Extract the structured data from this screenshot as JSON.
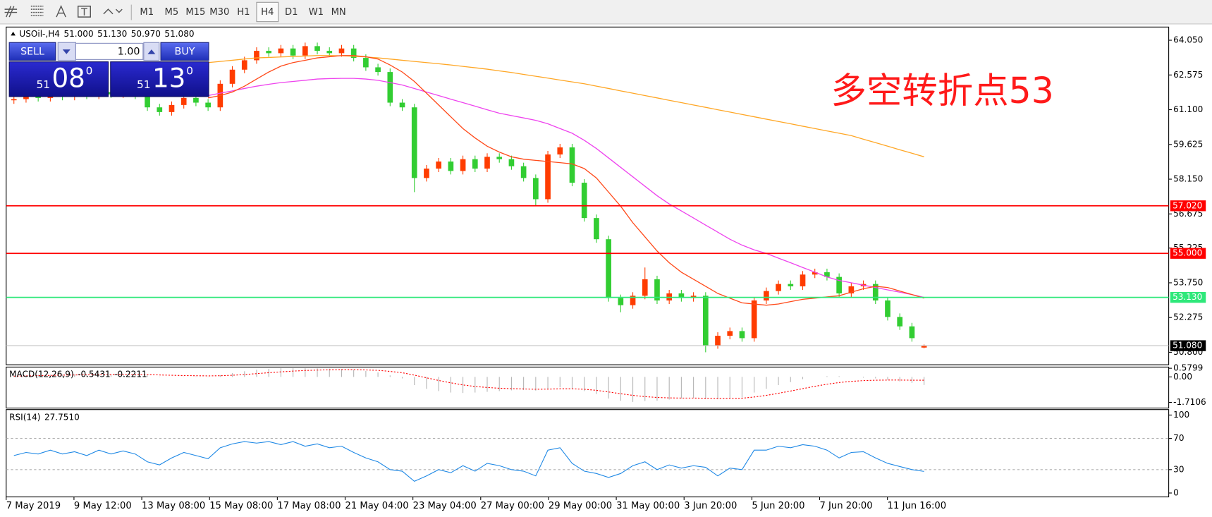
{
  "ui": {
    "timeframes": [
      "M1",
      "M5",
      "M15",
      "M30",
      "H1",
      "H4",
      "D1",
      "W1",
      "MN"
    ],
    "active_timeframe": "H4",
    "trade_panel": {
      "sell_label": "SELL",
      "buy_label": "BUY",
      "lots": "1.00",
      "bid": {
        "big": "51",
        "figure": "08",
        "pip": "0"
      },
      "ask": {
        "big": "51",
        "figure": "13",
        "pip": "0"
      }
    }
  },
  "chart_data": [
    {
      "type": "candlestick",
      "title": "USOil-,H4",
      "last_bar_labels": [
        "51.000",
        "51.130",
        "50.970",
        "51.080"
      ],
      "annotation": "多空转折点53",
      "up_color": "#ff3c00",
      "down_color": "#32cd32",
      "open": [
        61.5,
        61.55,
        61.7,
        61.6,
        61.75,
        61.65,
        61.8,
        61.7,
        61.85,
        61.75,
        61.9,
        61.7,
        61.2,
        61.0,
        61.3,
        61.6,
        61.4,
        61.2,
        62.2,
        62.8,
        63.2,
        63.6,
        63.5,
        63.7,
        63.4,
        63.8,
        63.6,
        63.5,
        63.7,
        63.3,
        62.9,
        62.7,
        61.4,
        61.2,
        58.2,
        58.6,
        58.9,
        58.5,
        59.0,
        58.6,
        59.1,
        59.0,
        58.7,
        58.2,
        57.3,
        59.2,
        59.5,
        58.0,
        56.5,
        55.6,
        53.1,
        52.8,
        53.2,
        53.9,
        53.0,
        53.3,
        53.1,
        53.2,
        51.1,
        51.5,
        51.7,
        51.4,
        53.0,
        53.4,
        53.7,
        53.6,
        54.1,
        54.2,
        54.0,
        53.3,
        53.6,
        53.7,
        53.0,
        52.3,
        51.9,
        51.0
      ],
      "high": [
        61.7,
        61.85,
        61.85,
        61.9,
        61.9,
        61.95,
        61.95,
        62.0,
        62.0,
        62.05,
        62.05,
        61.85,
        61.35,
        61.45,
        61.75,
        61.75,
        61.55,
        62.35,
        62.95,
        63.35,
        63.75,
        63.75,
        63.85,
        63.85,
        63.95,
        63.95,
        63.75,
        63.85,
        63.85,
        63.45,
        63.05,
        62.85,
        61.55,
        61.35,
        58.75,
        59.05,
        59.05,
        59.15,
        59.15,
        59.25,
        59.25,
        59.15,
        58.85,
        58.35,
        59.35,
        59.65,
        59.65,
        58.15,
        56.65,
        55.75,
        53.25,
        53.35,
        54.4,
        54.05,
        53.45,
        53.45,
        53.35,
        53.35,
        51.65,
        51.85,
        51.85,
        53.15,
        53.55,
        53.85,
        53.85,
        54.25,
        54.35,
        54.35,
        54.15,
        53.75,
        53.85,
        53.85,
        53.15,
        52.45,
        52.05,
        51.13
      ],
      "low": [
        61.35,
        61.4,
        61.45,
        61.45,
        61.5,
        61.5,
        61.55,
        61.55,
        61.6,
        61.6,
        61.55,
        61.05,
        60.85,
        60.85,
        61.15,
        61.25,
        61.05,
        61.05,
        62.05,
        62.65,
        63.05,
        63.35,
        63.35,
        63.25,
        63.25,
        63.45,
        63.35,
        63.35,
        63.15,
        62.75,
        62.55,
        61.25,
        61.05,
        57.6,
        58.05,
        58.45,
        58.35,
        58.35,
        58.45,
        58.45,
        58.85,
        58.55,
        58.05,
        57.0,
        57.15,
        59.05,
        57.85,
        56.35,
        55.45,
        52.95,
        52.5,
        52.65,
        53.05,
        52.85,
        52.85,
        52.95,
        52.95,
        50.8,
        50.95,
        51.35,
        51.25,
        51.25,
        52.85,
        53.25,
        53.45,
        53.45,
        53.95,
        53.85,
        53.15,
        53.15,
        53.45,
        52.85,
        52.15,
        51.75,
        51.25,
        50.97
      ],
      "close": [
        61.55,
        61.7,
        61.6,
        61.75,
        61.65,
        61.8,
        61.7,
        61.85,
        61.75,
        61.9,
        61.7,
        61.2,
        61.0,
        61.3,
        61.6,
        61.4,
        61.2,
        62.2,
        62.8,
        63.2,
        63.6,
        63.5,
        63.7,
        63.4,
        63.8,
        63.6,
        63.5,
        63.7,
        63.3,
        62.9,
        62.7,
        61.4,
        61.2,
        58.2,
        58.6,
        58.9,
        58.5,
        59.0,
        58.6,
        59.1,
        59.0,
        58.7,
        58.2,
        57.3,
        59.2,
        59.5,
        58.0,
        56.5,
        55.6,
        53.1,
        52.8,
        53.2,
        53.9,
        53.0,
        53.3,
        53.1,
        53.2,
        51.1,
        51.5,
        51.7,
        51.4,
        53.0,
        53.4,
        53.7,
        53.6,
        54.1,
        54.2,
        54.0,
        53.3,
        53.6,
        53.7,
        53.0,
        52.3,
        51.9,
        51.4,
        51.08
      ],
      "series": [
        {
          "color": "#ffa726",
          "values": [
            null,
            null,
            null,
            null,
            null,
            null,
            null,
            null,
            null,
            null,
            null,
            null,
            null,
            null,
            null,
            null,
            63.1,
            63.15,
            63.2,
            63.25,
            63.3,
            63.32,
            63.34,
            63.36,
            63.38,
            63.4,
            63.4,
            63.39,
            63.37,
            63.34,
            63.3,
            63.25,
            63.2,
            63.15,
            63.1,
            63.05,
            63.0,
            62.94,
            62.88,
            62.82,
            62.75,
            62.68,
            62.6,
            62.52,
            62.44,
            62.36,
            62.28,
            62.2,
            62.1,
            62.0,
            61.9,
            61.8,
            61.7,
            61.6,
            61.5,
            61.4,
            61.3,
            61.2,
            61.1,
            61.0,
            60.9,
            60.8,
            60.7,
            60.6,
            60.5,
            60.4,
            60.3,
            60.2,
            60.1,
            60.0,
            59.85,
            59.7,
            59.55,
            59.4,
            59.25,
            59.1
          ]
        },
        {
          "color": "#ee44ee",
          "values": [
            null,
            null,
            null,
            null,
            null,
            null,
            null,
            null,
            null,
            null,
            null,
            null,
            null,
            null,
            null,
            null,
            61.7,
            61.8,
            61.9,
            62.0,
            62.1,
            62.18,
            62.25,
            62.3,
            62.35,
            62.4,
            62.42,
            62.43,
            62.43,
            62.4,
            62.35,
            62.25,
            62.15,
            62.0,
            61.85,
            61.7,
            61.55,
            61.4,
            61.25,
            61.1,
            60.95,
            60.85,
            60.75,
            60.65,
            60.5,
            60.3,
            60.1,
            59.8,
            59.45,
            59.05,
            58.65,
            58.25,
            57.85,
            57.45,
            57.1,
            56.8,
            56.5,
            56.2,
            55.9,
            55.6,
            55.35,
            55.15,
            55.0,
            54.8,
            54.6,
            54.4,
            54.2,
            54.0,
            53.85,
            53.75,
            53.65,
            53.55,
            53.45,
            53.35,
            53.25,
            53.13
          ]
        },
        {
          "color": "#ff4a1a",
          "values": [
            null,
            null,
            null,
            null,
            null,
            null,
            null,
            null,
            null,
            null,
            null,
            null,
            null,
            null,
            null,
            null,
            61.6,
            61.7,
            61.85,
            62.1,
            62.4,
            62.7,
            62.95,
            63.1,
            63.2,
            63.3,
            63.35,
            63.4,
            63.4,
            63.35,
            63.25,
            63.0,
            62.7,
            62.3,
            61.8,
            61.3,
            60.8,
            60.3,
            59.9,
            59.55,
            59.3,
            59.1,
            59.0,
            58.95,
            58.9,
            58.85,
            58.8,
            58.6,
            58.2,
            57.6,
            57.0,
            56.3,
            55.7,
            55.1,
            54.6,
            54.2,
            53.9,
            53.6,
            53.3,
            53.1,
            52.9,
            52.85,
            52.8,
            52.85,
            52.95,
            53.05,
            53.1,
            53.15,
            53.2,
            53.35,
            53.5,
            53.6,
            53.55,
            53.4,
            53.25,
            53.1
          ]
        }
      ],
      "levels": [
        {
          "value": 57.02,
          "label": "57.020",
          "color": "#ff0000"
        },
        {
          "value": 55,
          "label": "55.000",
          "color": "#ff0000"
        },
        {
          "value": 53.13,
          "label": "53.130",
          "color": "#2ee87a"
        },
        {
          "value": 51.08,
          "label": "51.080",
          "color": "#c0c0c0",
          "tag_color": "#000000"
        }
      ],
      "ylim": [
        50.27,
        64.61
      ],
      "yticks": [
        {
          "value": 64.05,
          "label": "64.050"
        },
        62.575,
        {
          "value": 61.1,
          "label": "61.100"
        },
        59.625,
        {
          "value": 58.15,
          "label": "58.150"
        },
        56.675,
        55.225,
        {
          "value": 53.75,
          "label": "53.750"
        },
        52.275,
        {
          "value": 50.8,
          "label": "50.800"
        }
      ],
      "time_labels": [
        "7 May 2019",
        "9 May 12:00",
        "13 May 08:00",
        "15 May 08:00",
        "17 May 08:00",
        "21 May 04:00",
        "23 May 04:00",
        "27 May 00:00",
        "29 May 00:00",
        "31 May 00:00",
        "3 Jun 20:00",
        "5 Jun 20:00",
        "7 Jun 20:00",
        "11 Jun 16:00"
      ]
    },
    {
      "type": "macd",
      "title": "MACD(12,26,9)",
      "series": [
        {
          "color": "#b4b4b4",
          "values": [
            0.1,
            0.12,
            0.14,
            0.15,
            0.16,
            0.17,
            0.17,
            0.18,
            0.18,
            0.19,
            0.17,
            0.1,
            0.02,
            0.0,
            0.02,
            0.03,
            0.02,
            0.12,
            0.25,
            0.38,
            0.48,
            0.54,
            0.58,
            0.58,
            0.58,
            0.57,
            0.55,
            0.53,
            0.48,
            0.4,
            0.3,
            0.1,
            -0.1,
            -0.55,
            -0.8,
            -0.95,
            -1.05,
            -1.08,
            -1.05,
            -1.0,
            -0.95,
            -0.9,
            -0.88,
            -0.92,
            -0.8,
            -0.7,
            -0.78,
            -0.95,
            -1.15,
            -1.45,
            -1.6,
            -1.68,
            -1.62,
            -1.6,
            -1.52,
            -1.45,
            -1.4,
            -1.48,
            -1.5,
            -1.45,
            -1.38,
            -1.05,
            -0.8,
            -0.55,
            -0.35,
            -0.15,
            0.0,
            0.05,
            0.05,
            0.0,
            -0.05,
            -0.1,
            -0.2,
            -0.3,
            -0.4,
            -0.5431
          ]
        },
        {
          "color": "#ff0000",
          "values": [
            0.05,
            0.07,
            0.09,
            0.1,
            0.12,
            0.13,
            0.14,
            0.15,
            0.16,
            0.17,
            0.17,
            0.16,
            0.13,
            0.11,
            0.09,
            0.08,
            0.07,
            0.08,
            0.11,
            0.16,
            0.22,
            0.28,
            0.34,
            0.39,
            0.43,
            0.46,
            0.48,
            0.49,
            0.49,
            0.47,
            0.44,
            0.37,
            0.28,
            0.12,
            -0.06,
            -0.24,
            -0.4,
            -0.54,
            -0.64,
            -0.71,
            -0.76,
            -0.79,
            -0.81,
            -0.83,
            -0.82,
            -0.8,
            -0.8,
            -0.83,
            -0.9,
            -1.01,
            -1.13,
            -1.24,
            -1.32,
            -1.38,
            -1.41,
            -1.42,
            -1.42,
            -1.43,
            -1.44,
            -1.44,
            -1.43,
            -1.35,
            -1.24,
            -1.1,
            -0.95,
            -0.79,
            -0.63,
            -0.49,
            -0.38,
            -0.3,
            -0.25,
            -0.22,
            -0.21,
            -0.21,
            -0.22,
            -0.2211
          ]
        }
      ],
      "ylim": [
        -2.09,
        0.66
      ],
      "yticks": [
        0.5799,
        {
          "value": 0,
          "label": "0.00"
        },
        -1.7106
      ]
    },
    {
      "type": "rsi",
      "title": "RSI(14)",
      "last_value_label": "27.7510",
      "series": [
        {
          "color": "#1e88e5",
          "values": [
            48,
            52,
            50,
            55,
            50,
            53,
            48,
            55,
            50,
            54,
            50,
            40,
            36,
            45,
            52,
            48,
            44,
            58,
            63,
            66,
            64,
            66,
            62,
            66,
            60,
            63,
            58,
            60,
            52,
            45,
            40,
            30,
            28,
            15,
            22,
            30,
            26,
            35,
            28,
            38,
            35,
            30,
            28,
            22,
            55,
            58,
            38,
            28,
            25,
            20,
            25,
            35,
            40,
            30,
            36,
            32,
            35,
            33,
            22,
            32,
            30,
            55,
            55,
            60,
            58,
            62,
            60,
            55,
            45,
            52,
            53,
            45,
            38,
            34,
            30,
            27.751
          ]
        }
      ],
      "levels": [
        70,
        30
      ],
      "ylim": [
        -5,
        107
      ],
      "yticks": [
        100,
        70,
        30,
        0
      ]
    }
  ]
}
